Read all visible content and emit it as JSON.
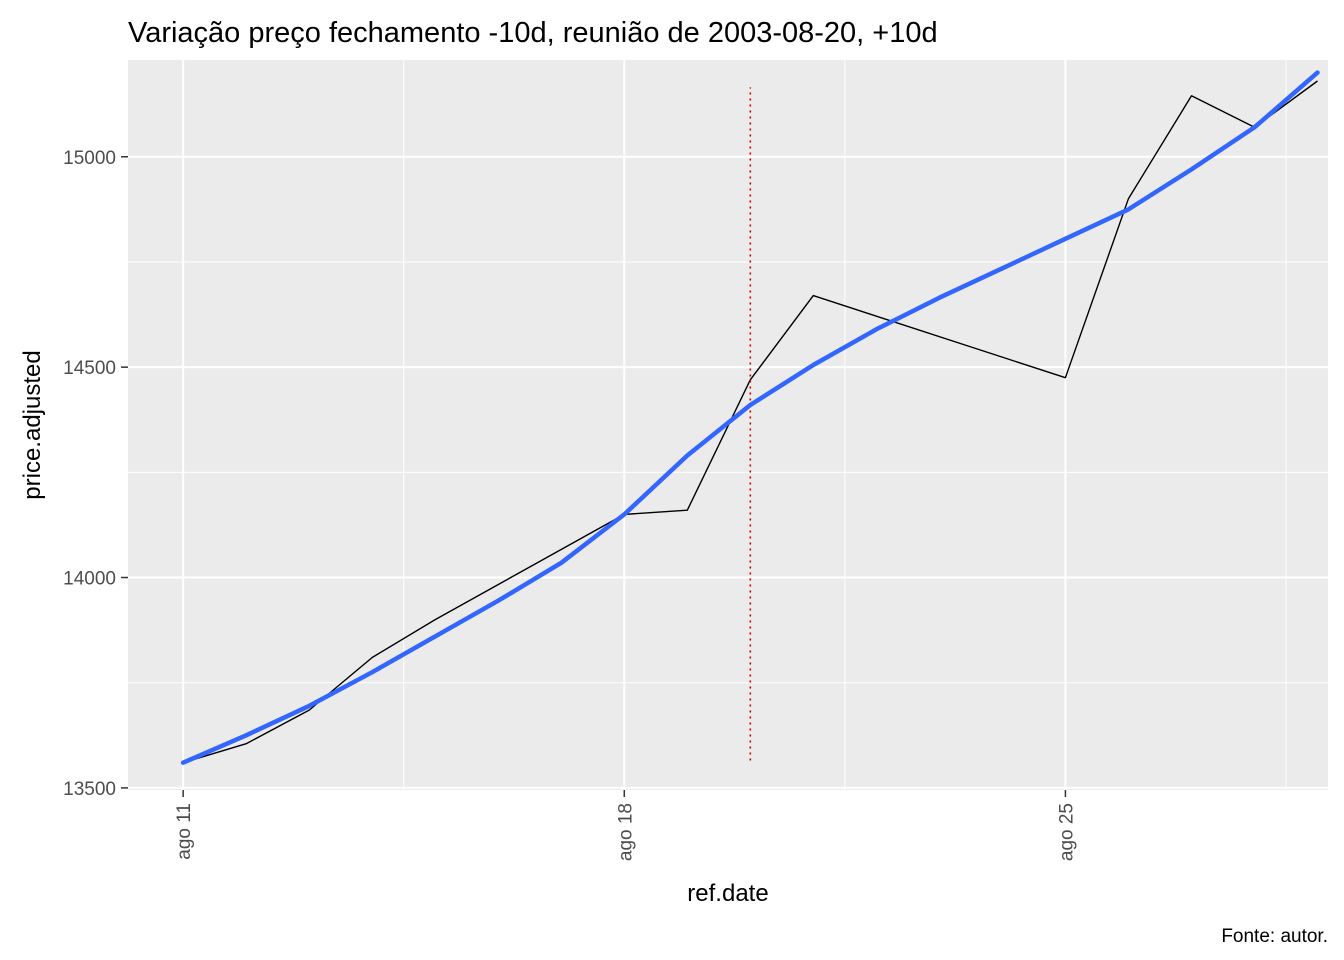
{
  "chart_data": {
    "type": "line",
    "title": "Variação preço fechamento -10d, reunião de 2003-08-20, +10d",
    "xlabel": "ref.date",
    "ylabel": "price.adjusted",
    "caption": "Fonte: autor.",
    "x_ticks": [
      {
        "date": "2003-08-11",
        "label": "ago 11"
      },
      {
        "date": "2003-08-18",
        "label": "ago 18"
      },
      {
        "date": "2003-08-25",
        "label": "ago 25"
      }
    ],
    "x_minor_ticks": [
      "2003-08-14 12:00",
      "2003-08-21 12:00",
      "2003-08-28 12:00"
    ],
    "xlim": [
      "2003-08-10 03:00",
      "2003-08-29 04:00"
    ],
    "y_ticks": [
      13500,
      14000,
      14500,
      15000
    ],
    "y_minor_ticks": [
      13750,
      14250,
      14750
    ],
    "ylim": [
      13495,
      15230
    ],
    "grid": true,
    "panel_background": "#ebebeb",
    "series": [
      {
        "role": "price",
        "color": "#000000",
        "points": [
          {
            "x": "2003-08-11",
            "y": 13560
          },
          {
            "x": "2003-08-12",
            "y": 13605
          },
          {
            "x": "2003-08-13",
            "y": 13685
          },
          {
            "x": "2003-08-14",
            "y": 13810
          },
          {
            "x": "2003-08-15",
            "y": 13900
          },
          {
            "x": "2003-08-18",
            "y": 14150
          },
          {
            "x": "2003-08-19",
            "y": 14160
          },
          {
            "x": "2003-08-20",
            "y": 14470
          },
          {
            "x": "2003-08-21",
            "y": 14670
          },
          {
            "x": "2003-08-25",
            "y": 14475
          },
          {
            "x": "2003-08-26",
            "y": 14900
          },
          {
            "x": "2003-08-27",
            "y": 15145
          },
          {
            "x": "2003-08-28",
            "y": 15070
          },
          {
            "x": "2003-08-29",
            "y": 15180
          }
        ]
      },
      {
        "role": "smooth",
        "color": "#3366ff",
        "points": [
          {
            "x": "2003-08-11",
            "y": 13560
          },
          {
            "x": "2003-08-12",
            "y": 13625
          },
          {
            "x": "2003-08-13",
            "y": 13695
          },
          {
            "x": "2003-08-14",
            "y": 13775
          },
          {
            "x": "2003-08-15",
            "y": 13860
          },
          {
            "x": "2003-08-16",
            "y": 13945
          },
          {
            "x": "2003-08-17",
            "y": 14035
          },
          {
            "x": "2003-08-18",
            "y": 14150
          },
          {
            "x": "2003-08-19",
            "y": 14290
          },
          {
            "x": "2003-08-20",
            "y": 14410
          },
          {
            "x": "2003-08-21",
            "y": 14505
          },
          {
            "x": "2003-08-22",
            "y": 14590
          },
          {
            "x": "2003-08-23",
            "y": 14665
          },
          {
            "x": "2003-08-24",
            "y": 14735
          },
          {
            "x": "2003-08-25",
            "y": 14805
          },
          {
            "x": "2003-08-26",
            "y": 14875
          },
          {
            "x": "2003-08-27",
            "y": 14970
          },
          {
            "x": "2003-08-28",
            "y": 15070
          },
          {
            "x": "2003-08-29",
            "y": 15200
          }
        ]
      }
    ],
    "vline": {
      "x": "2003-08-20",
      "y_range": [
        13565,
        15165
      ],
      "color": "#cc0000",
      "style": "dotted"
    }
  }
}
